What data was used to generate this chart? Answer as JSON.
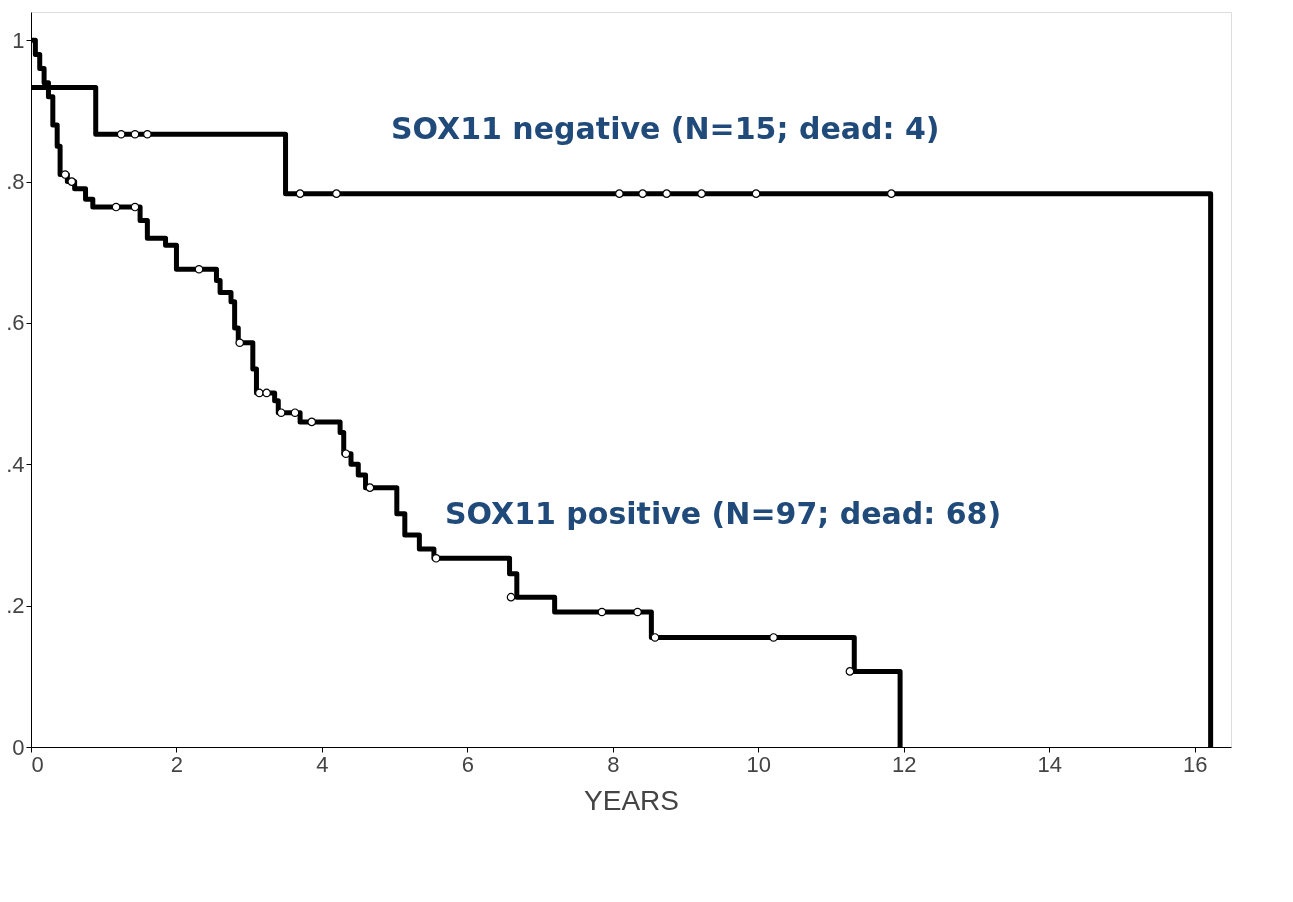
{
  "chart_data": {
    "type": "step",
    "xlabel": "YEARS",
    "xlim": [
      0,
      16.5
    ],
    "xticks": [
      0,
      2,
      4,
      6,
      8,
      10,
      12,
      14,
      16
    ],
    "ylim": [
      0,
      1.04
    ],
    "yticks": [
      0,
      {
        "value": 0.2,
        "label": ".2"
      },
      {
        "value": 0.4,
        "label": ".4"
      },
      {
        "value": 0.6,
        "label": ".6"
      },
      {
        "value": 0.8,
        "label": ".8"
      },
      1
    ],
    "grid": false,
    "legend": false,
    "line_style": "solid",
    "series": [
      {
        "name": "SOX11 negative (N=15; dead: 4)",
        "color": "#000000",
        "x": [
          0,
          0.89,
          3.5,
          16.22
        ],
        "values": [
          0.933,
          0.867,
          0.783,
          0
        ]
      },
      {
        "name": "SOX11 positive (N=97; dead: 68)",
        "color": "#000000",
        "x": [
          0,
          0.06,
          0.12,
          0.18,
          0.24,
          0.3,
          0.36,
          0.4,
          0.5,
          0.6,
          0.75,
          0.85,
          1.5,
          1.6,
          1.85,
          2.0,
          2.55,
          2.6,
          2.75,
          2.8,
          2.85,
          3.05,
          3.1,
          3.35,
          3.4,
          3.7,
          4.25,
          4.3,
          4.4,
          4.5,
          4.6,
          5.03,
          5.14,
          5.34,
          5.54,
          6.58,
          6.68,
          7.2,
          8.53,
          11.32,
          11.95
        ],
        "values": [
          1.0,
          0.98,
          0.96,
          0.94,
          0.92,
          0.88,
          0.85,
          0.81,
          0.8,
          0.79,
          0.775,
          0.764,
          0.745,
          0.72,
          0.71,
          0.676,
          0.66,
          0.643,
          0.63,
          0.593,
          0.572,
          0.535,
          0.501,
          0.49,
          0.473,
          0.46,
          0.445,
          0.415,
          0.4,
          0.385,
          0.367,
          0.33,
          0.3,
          0.28,
          0.267,
          0.245,
          0.212,
          0.191,
          0.155,
          0.107,
          0
        ]
      },
      {
        "type": "scatter",
        "marker": "circle",
        "color": "#000000",
        "x": [
          1.24,
          1.43,
          1.6,
          3.7,
          4.2,
          8.09,
          8.41,
          8.74,
          9.22,
          9.97,
          11.83
        ],
        "values": [
          0.867,
          0.867,
          0.867,
          0.783,
          0.783,
          0.783,
          0.783,
          0.783,
          0.783,
          0.783,
          0.783
        ]
      },
      {
        "type": "scatter",
        "marker": "circle",
        "color": "#000000",
        "x": [
          0.47,
          0.56,
          1.17,
          1.43,
          2.31,
          2.87,
          3.14,
          3.24,
          3.44,
          3.63,
          3.86,
          4.33,
          4.66,
          5.57,
          6.6,
          7.85,
          8.34,
          8.58,
          10.21,
          11.26
        ],
        "values": [
          0.81,
          0.8,
          0.764,
          0.764,
          0.676,
          0.572,
          0.501,
          0.501,
          0.473,
          0.473,
          0.46,
          0.415,
          0.367,
          0.267,
          0.212,
          0.191,
          0.191,
          0.155,
          0.155,
          0.107
        ]
      }
    ]
  }
}
